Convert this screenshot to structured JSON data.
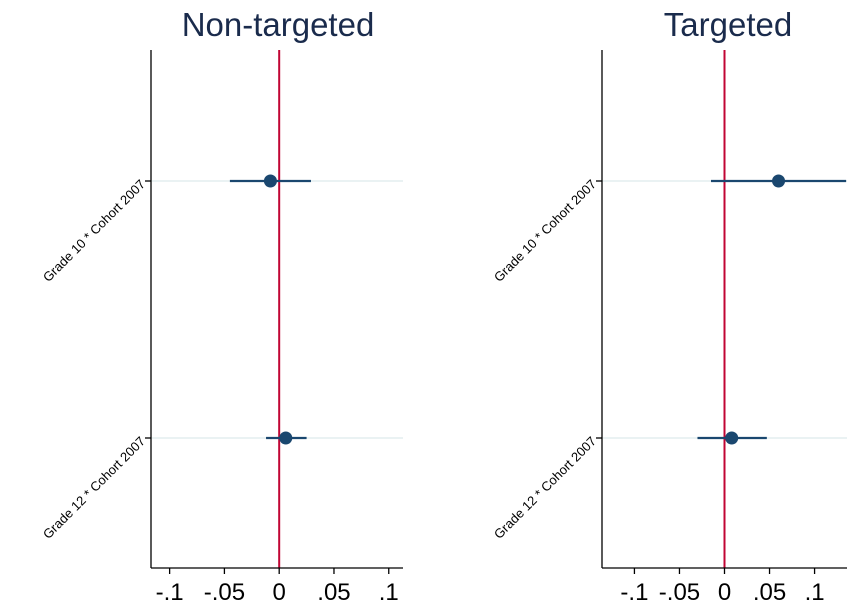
{
  "chart_data": [
    {
      "type": "scatter",
      "subtype": "coefficient-plot",
      "title": "Non-targeted",
      "categories": [
        "Grade 10 * Cohort 2007",
        "Grade 12 * Cohort 2007"
      ],
      "x_ticks": [
        {
          "value": -0.1,
          "label": "-.1"
        },
        {
          "value": -0.05,
          "label": "-.05"
        },
        {
          "value": 0,
          "label": "0"
        },
        {
          "value": 0.05,
          "label": ".05"
        },
        {
          "value": 0.1,
          "label": ".1"
        }
      ],
      "xlim": [
        -0.117,
        0.113
      ],
      "reference_line": 0,
      "points": [
        {
          "category": "Grade 10 * Cohort 2007",
          "estimate": -0.008,
          "ci_low": -0.045,
          "ci_high": 0.029
        },
        {
          "category": "Grade 12 * Cohort 2007",
          "estimate": 0.006,
          "ci_low": -0.012,
          "ci_high": 0.025
        }
      ]
    },
    {
      "type": "scatter",
      "subtype": "coefficient-plot",
      "title": "Targeted",
      "categories": [
        "Grade 10 * Cohort 2007",
        "Grade 12 * Cohort 2007"
      ],
      "x_ticks": [
        {
          "value": -0.1,
          "label": "-.1"
        },
        {
          "value": -0.05,
          "label": "-.05"
        },
        {
          "value": 0,
          "label": "0"
        },
        {
          "value": 0.05,
          "label": ".05"
        },
        {
          "value": 0.1,
          "label": ".1"
        }
      ],
      "xlim": [
        -0.136,
        0.136
      ],
      "reference_line": 0,
      "points": [
        {
          "category": "Grade 10 * Cohort 2007",
          "estimate": 0.06,
          "ci_low": -0.015,
          "ci_high": 0.135
        },
        {
          "category": "Grade 12 * Cohort 2007",
          "estimate": 0.008,
          "ci_low": -0.03,
          "ci_high": 0.047
        }
      ]
    }
  ],
  "colors": {
    "title": "#1a2b4c",
    "marker": "#1a476f",
    "ci_line": "#1a476f",
    "reference_line": "#c10534",
    "gridline": "#eaf2f3",
    "axis": "#000000"
  }
}
